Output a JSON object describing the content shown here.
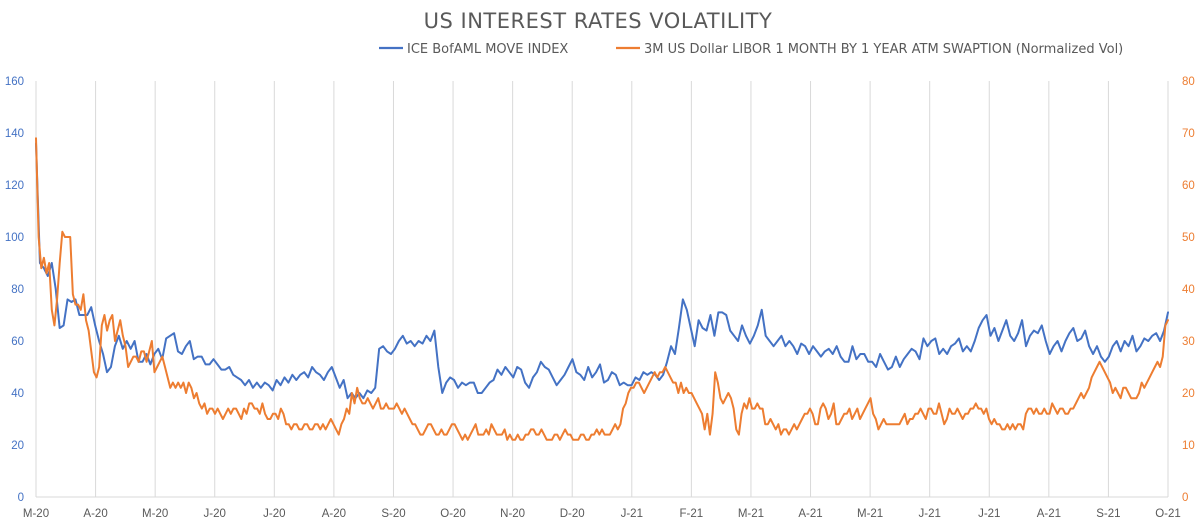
{
  "chart_data": {
    "type": "line",
    "title": "US INTEREST RATES VOLATILITY",
    "x_tick_labels": [
      "M-20",
      "A-20",
      "M-20",
      "J-20",
      "J-20",
      "A-20",
      "S-20",
      "O-20",
      "N-20",
      "D-20",
      "J-21",
      "F-21",
      "M-21",
      "A-21",
      "M-21",
      "J-21",
      "J-21",
      "A-21",
      "S-21",
      "O-21"
    ],
    "y_left": {
      "ticks": [
        "0",
        "20",
        "40",
        "60",
        "80",
        "100",
        "120",
        "140",
        "160"
      ],
      "ylim": [
        0,
        160
      ],
      "color": "#4472c4"
    },
    "y_right": {
      "ticks": [
        "0",
        "10",
        "20",
        "30",
        "40",
        "50",
        "60",
        "70",
        "80"
      ],
      "ylim": [
        0,
        80
      ],
      "color": "#ed7d31"
    },
    "grid": "vertical",
    "legend_position": "top",
    "series": [
      {
        "name": "ICE BofAML MOVE INDEX",
        "axis": "left",
        "color": "#4472c4",
        "values": [
          136,
          90,
          88,
          85,
          90,
          80,
          65,
          66,
          76,
          75,
          76,
          70,
          70,
          70,
          73,
          66,
          60,
          55,
          48,
          50,
          58,
          62,
          57,
          60,
          57,
          60,
          52,
          52,
          55,
          51,
          55,
          57,
          53,
          61,
          62,
          63,
          56,
          55,
          58,
          60,
          53,
          54,
          54,
          51,
          51,
          53,
          51,
          49,
          49,
          50,
          47,
          46,
          45,
          43,
          45,
          42,
          44,
          42,
          44,
          43,
          41,
          45,
          43,
          46,
          44,
          47,
          45,
          47,
          48,
          46,
          50,
          48,
          47,
          45,
          48,
          50,
          46,
          42,
          45,
          38,
          40,
          38,
          40,
          38,
          41,
          40,
          42,
          57,
          58,
          56,
          55,
          57,
          60,
          62,
          59,
          60,
          58,
          60,
          59,
          62,
          60,
          64,
          50,
          40,
          44,
          46,
          45,
          42,
          44,
          43,
          44,
          44,
          40,
          40,
          42,
          44,
          45,
          49,
          47,
          50,
          48,
          46,
          50,
          49,
          44,
          42,
          46,
          48,
          52,
          50,
          49,
          46,
          43,
          45,
          47,
          50,
          53,
          48,
          47,
          45,
          50,
          46,
          48,
          51,
          44,
          45,
          48,
          47,
          43,
          44,
          43,
          43,
          46,
          45,
          48,
          47,
          48,
          47,
          45,
          47,
          52,
          58,
          55,
          65,
          76,
          72,
          65,
          58,
          68,
          65,
          64,
          70,
          62,
          71,
          71,
          70,
          64,
          62,
          60,
          66,
          62,
          59,
          62,
          66,
          72,
          62,
          60,
          58,
          60,
          62,
          58,
          60,
          58,
          55,
          59,
          58,
          55,
          58,
          56,
          54,
          56,
          57,
          55,
          58,
          54,
          52,
          52,
          58,
          53,
          55,
          55,
          52,
          52,
          50,
          55,
          52,
          49,
          50,
          54,
          50,
          53,
          55,
          57,
          56,
          53,
          61,
          58,
          60,
          61,
          55,
          57,
          55,
          58,
          59,
          61,
          56,
          58,
          56,
          60,
          65,
          68,
          70,
          62,
          65,
          60,
          64,
          68,
          62,
          60,
          63,
          68,
          58,
          62,
          64,
          63,
          66,
          60,
          55,
          58,
          60,
          56,
          60,
          63,
          65,
          60,
          61,
          64,
          58,
          55,
          58,
          54,
          52,
          54,
          58,
          60,
          56,
          60,
          58,
          62,
          56,
          58,
          61,
          60,
          62,
          63,
          60,
          64,
          71
        ]
      },
      {
        "name": "3M US Dollar LIBOR 1 MONTH BY 1 YEAR ATM SWAPTION (Normalized Vol)",
        "axis": "right",
        "color": "#ed7d31",
        "values": [
          69,
          50,
          44,
          46,
          43,
          45,
          36,
          33,
          38,
          45,
          51,
          50,
          50,
          50,
          39,
          37,
          37,
          36,
          39,
          34,
          32,
          28,
          24,
          23,
          25,
          33,
          35,
          32,
          34,
          35,
          30,
          32,
          34,
          31,
          29,
          25,
          26,
          27,
          27,
          26,
          28,
          28,
          26,
          28,
          30,
          24,
          25,
          26,
          27,
          25,
          23,
          21,
          22,
          21,
          22,
          21,
          22,
          20,
          22,
          21,
          19,
          20,
          18,
          17,
          18,
          16,
          17,
          17,
          16,
          17,
          16,
          15,
          16,
          17,
          16,
          17,
          17,
          16,
          15,
          17,
          16,
          18,
          18,
          17,
          17,
          16,
          18,
          16,
          15,
          15,
          16,
          16,
          15,
          17,
          16,
          14,
          14,
          13,
          14,
          14,
          13,
          13,
          14,
          14,
          13,
          13,
          14,
          14,
          13,
          14,
          13,
          14,
          15,
          14,
          13,
          12,
          14,
          15,
          17,
          16,
          20,
          18,
          21,
          19,
          18,
          18,
          19,
          18,
          17,
          18,
          19,
          17,
          17,
          18,
          17,
          17,
          17,
          18,
          17,
          16,
          17,
          16,
          15,
          14,
          14,
          13,
          12,
          12,
          13,
          14,
          14,
          13,
          12,
          12,
          13,
          12,
          12,
          13,
          14,
          14,
          13,
          12,
          11,
          12,
          11,
          12,
          13,
          14,
          12,
          12,
          12,
          13,
          12,
          14,
          13,
          12,
          12,
          12,
          13,
          11,
          12,
          11,
          11,
          12,
          11,
          11,
          12,
          12,
          13,
          13,
          12,
          12,
          13,
          12,
          11,
          11,
          11,
          12,
          12,
          11,
          12,
          13,
          12,
          12,
          11,
          11,
          11,
          12,
          12,
          11,
          11,
          12,
          12,
          13,
          12,
          13,
          12,
          12,
          12,
          13,
          14,
          13,
          14,
          17,
          18,
          20,
          21,
          21,
          22,
          22,
          21,
          20,
          21,
          22,
          23,
          24,
          23,
          24,
          24,
          25,
          24,
          23,
          22,
          22,
          20,
          22,
          20,
          21,
          20,
          20,
          19,
          18,
          17,
          16,
          13,
          16,
          12,
          16,
          24,
          22,
          19,
          18,
          19,
          20,
          19,
          17,
          13,
          12,
          16,
          18,
          17,
          19,
          17,
          17,
          18,
          17,
          17,
          14,
          14,
          15,
          14,
          13,
          14,
          12,
          13,
          13,
          12,
          13,
          14,
          13,
          14,
          15,
          16,
          16,
          17,
          16,
          14,
          14,
          17,
          18,
          17,
          15,
          16,
          18,
          14,
          14,
          15,
          16,
          16,
          17,
          15,
          16,
          17,
          15,
          16,
          17,
          18,
          19,
          16,
          15,
          13,
          14,
          15,
          14,
          14,
          14,
          14,
          14,
          14,
          15,
          16,
          14,
          15,
          15,
          16,
          16,
          17,
          16,
          15,
          17,
          17,
          16,
          16,
          18,
          16,
          14,
          15,
          17,
          16,
          16,
          17,
          16,
          15,
          16,
          16,
          17,
          17,
          18,
          17,
          17,
          16,
          17,
          15,
          14,
          15,
          14,
          14,
          13,
          13,
          14,
          13,
          14,
          13,
          14,
          14,
          13,
          16,
          17,
          17,
          16,
          17,
          16,
          16,
          17,
          16,
          16,
          18,
          17,
          16,
          17,
          17,
          16,
          16,
          17,
          17,
          18,
          19,
          20,
          19,
          20,
          21,
          23,
          24,
          25,
          26,
          25,
          24,
          23,
          22,
          20,
          21,
          20,
          19,
          21,
          21,
          20,
          19,
          19,
          19,
          20,
          22,
          21,
          22,
          23,
          24,
          25,
          26,
          25,
          27,
          33,
          34
        ]
      }
    ]
  }
}
